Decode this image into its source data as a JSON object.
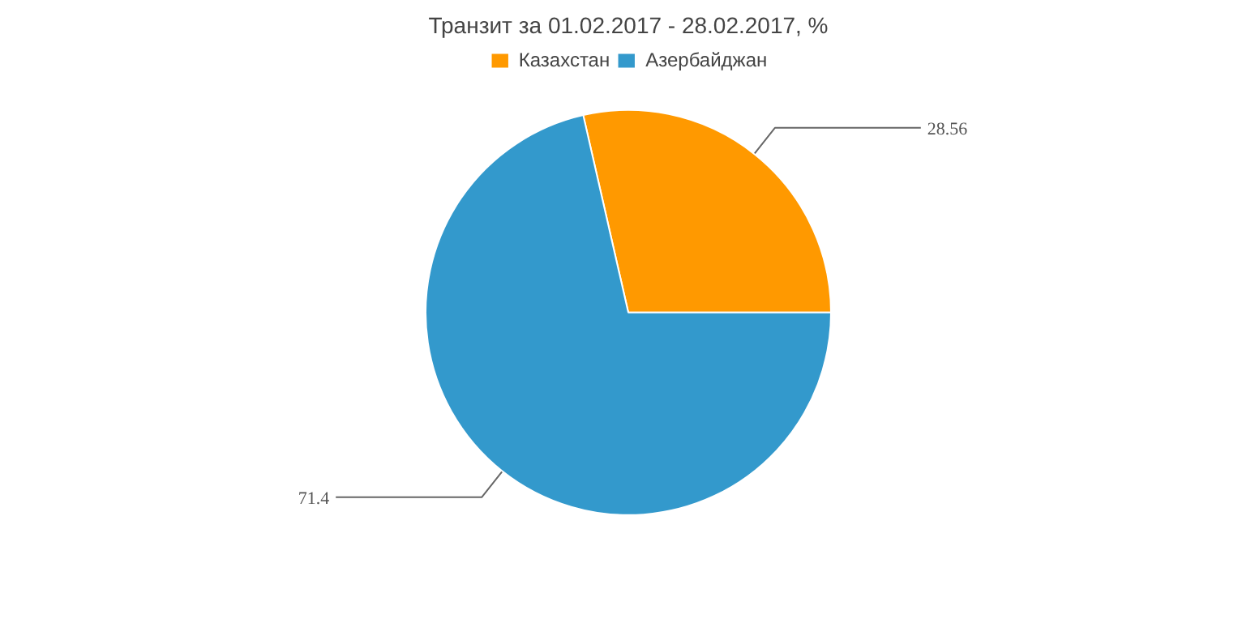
{
  "chart_data": {
    "type": "pie",
    "title": "Транзит за 01.02.2017 - 28.02.2017, %",
    "categories": [
      "Казахстан",
      "Азербайджан"
    ],
    "values": [
      28.56,
      71.4
    ],
    "colors": [
      "#ff9900",
      "#3399cc"
    ],
    "data_labels": true,
    "legend": "top"
  }
}
